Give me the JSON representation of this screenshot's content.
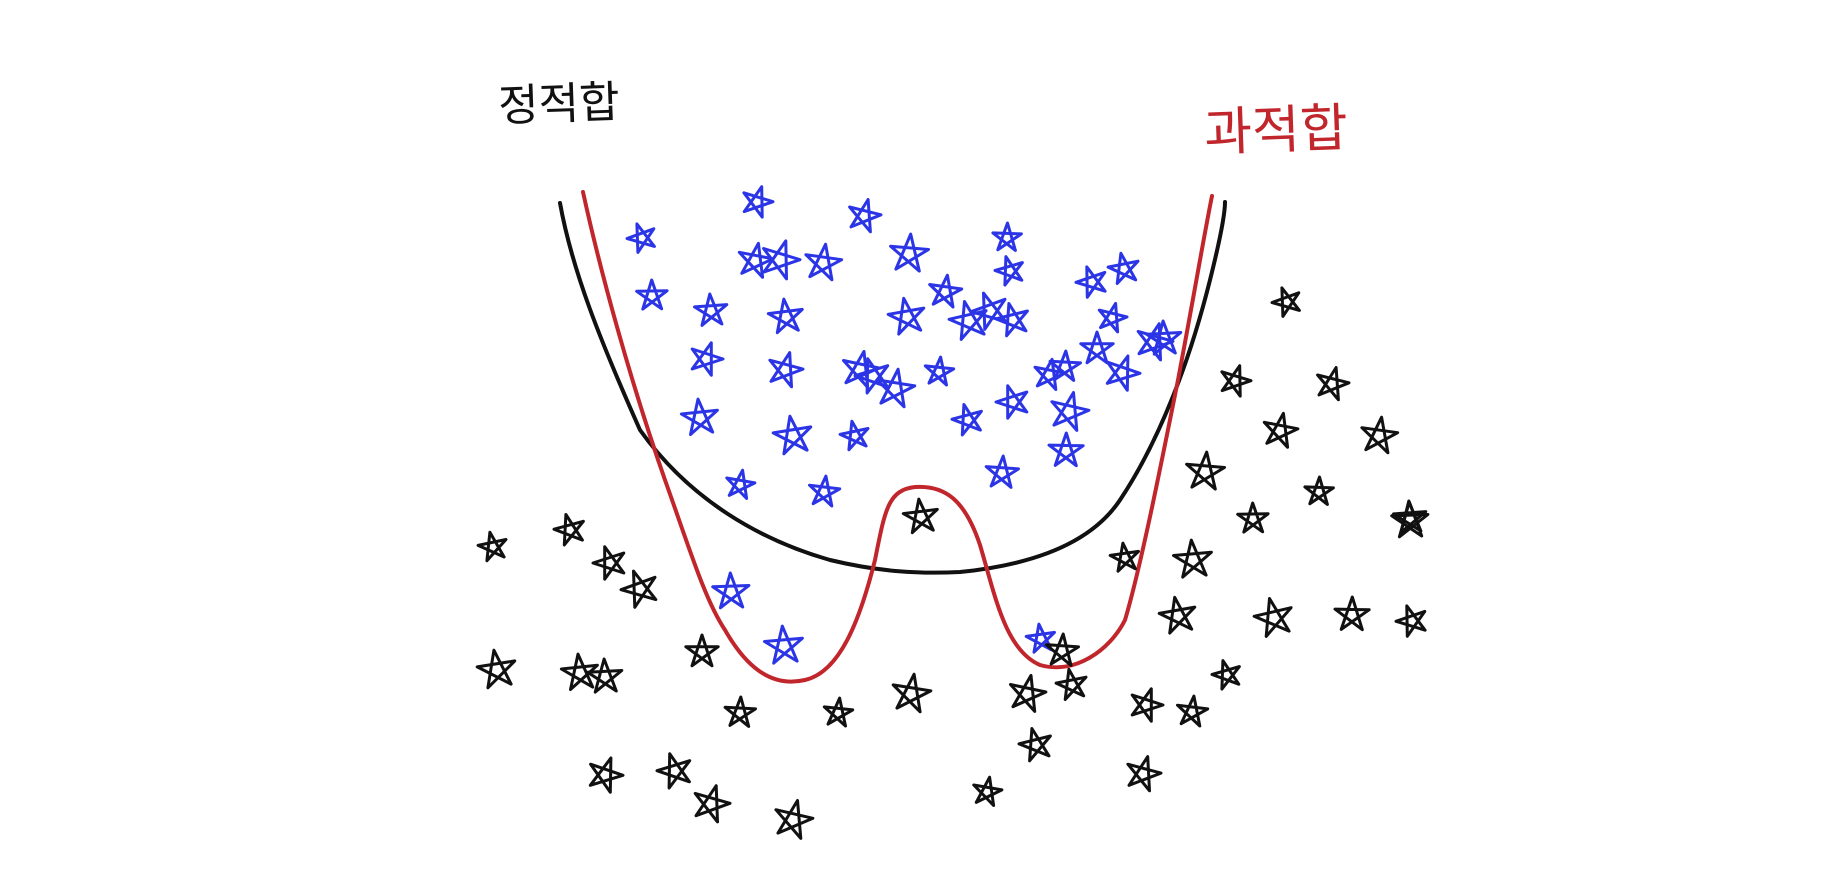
{
  "labels": {
    "good_fit": "정적합",
    "over_fit": "과적합"
  },
  "colors": {
    "good_fit": "#111111",
    "over_fit": "#c0262b",
    "class_a": "#2b35e6",
    "class_b": "#111111",
    "background": "#ffffff"
  },
  "icons": {
    "point_marker": "hand-drawn-star-icon"
  },
  "classes": [
    {
      "color_key": "class_a",
      "count": 45
    },
    {
      "color_key": "class_b",
      "count": 41
    }
  ]
}
